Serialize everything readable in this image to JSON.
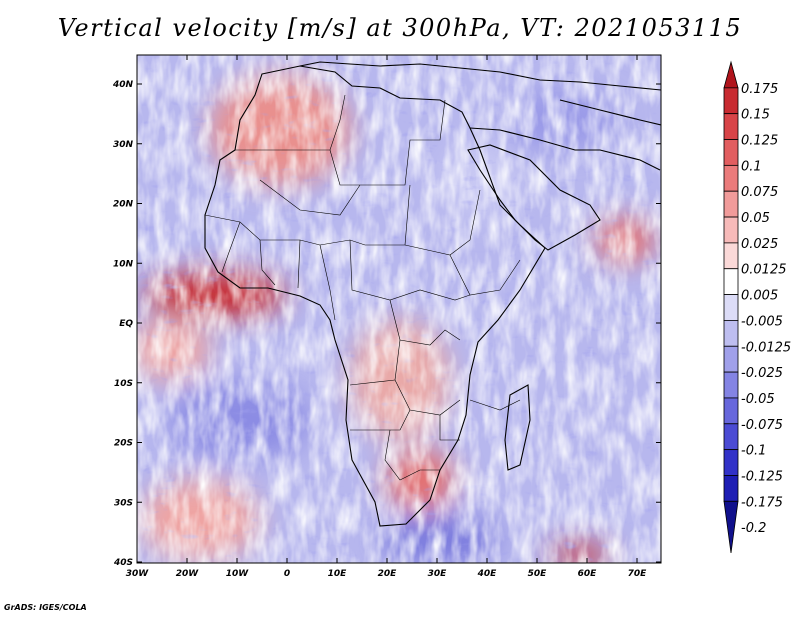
{
  "title": "Vertical velocity [m/s] at 300hPa, VT: 2021053115",
  "credit": "GrADS: IGES/COLA",
  "map": {
    "lat_labels": [
      "40N",
      "30N",
      "20N",
      "10N",
      "EQ",
      "10S",
      "20S",
      "30S",
      "40S"
    ],
    "lon_labels": [
      "30W",
      "20W",
      "10W",
      "0",
      "10E",
      "20E",
      "30E",
      "40E",
      "50E",
      "60E",
      "70E"
    ]
  },
  "colorbar": {
    "labels": [
      "0.175",
      "0.15",
      "0.125",
      "0.1",
      "0.075",
      "0.05",
      "0.025",
      "0.0125",
      "0.005",
      "-0.005",
      "-0.0125",
      "-0.025",
      "-0.05",
      "-0.075",
      "-0.1",
      "-0.125",
      "-0.175",
      "-0.2"
    ],
    "colors": [
      "#b0141c",
      "#c82b31",
      "#d84448",
      "#e25e60",
      "#eb7b7b",
      "#f19b9a",
      "#f7bab9",
      "#fbd9d8",
      "#ffffff",
      "#dcdcf7",
      "#bebef0",
      "#a0a0ea",
      "#8484e4",
      "#6767dc",
      "#4b4bd4",
      "#3232c8",
      "#1e1eb4",
      "#10108c"
    ]
  }
}
